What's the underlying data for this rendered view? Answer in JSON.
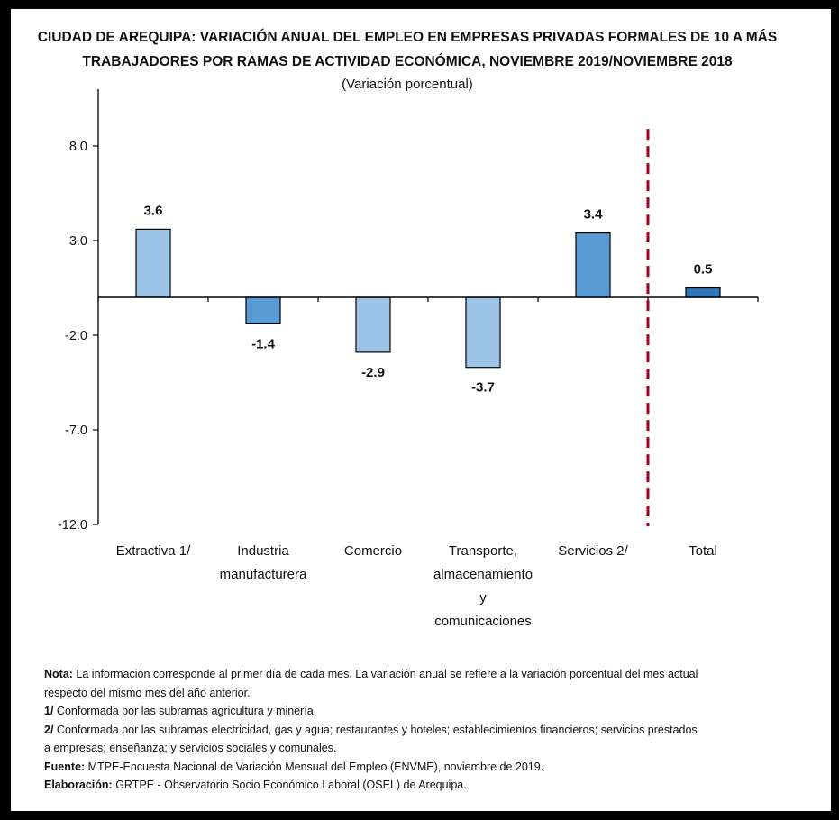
{
  "chart_data": {
    "type": "bar",
    "title": "CIUDAD DE AREQUIPA: VARIACIÓN ANUAL DEL EMPLEO EN EMPRESAS PRIVADAS FORMALES DE 10 A MÁS TRABAJADORES POR RAMAS DE ACTIVIDAD ECONÓMICA, NOVIEMBRE 2019/NOVIEMBRE 2018",
    "title_lines": [
      "CIUDAD DE AREQUIPA: VARIACIÓN ANUAL DEL EMPLEO EN EMPRESAS PRIVADAS FORMALES DE 10 A MÁS",
      "TRABAJADORES POR RAMAS DE ACTIVIDAD ECONÓMICA, NOVIEMBRE 2019/NOVIEMBRE 2018"
    ],
    "subtitle": "(Variación porcentual)",
    "xlabel": "",
    "ylabel": "",
    "ylim": [
      -12,
      8
    ],
    "yticks": [
      8,
      3,
      -2,
      -7,
      -12
    ],
    "ytick_labels": [
      "8.0",
      "3.0",
      "-2.0",
      "-7.0",
      "-12.0"
    ],
    "categories": [
      [
        "Extractiva 1/"
      ],
      [
        "Industria",
        "manufacturera"
      ],
      [
        "Comercio"
      ],
      [
        "Transporte,",
        "almacenamiento",
        "y",
        "comunicaciones"
      ],
      [
        "Servicios 2/"
      ],
      [
        "Total"
      ]
    ],
    "values": [
      3.6,
      -1.4,
      -2.9,
      -3.7,
      3.4,
      0.5
    ],
    "value_labels": [
      "3.6",
      "-1.4",
      "-2.9",
      "-3.7",
      "3.4",
      "0.5"
    ],
    "bar_colors": [
      "#9DC3E6",
      "#5B9BD5",
      "#9DC3E6",
      "#9DC3E6",
      "#5B9BD5",
      "#2E75B6"
    ],
    "separator": {
      "between": [
        "Servicios 2/",
        "Total"
      ],
      "style": "dashed",
      "color": "#A50021"
    },
    "grid": false,
    "legend": "none"
  },
  "notes": [
    {
      "label": "Nota:",
      "text": " La información corresponde al primer día de cada mes. La variación anual se refiere a la variación porcentual del mes actual"
    },
    {
      "label": "",
      "text": "respecto del mismo mes del año anterior."
    },
    {
      "label": "1/",
      "text": " Conformada por las subramas agricultura y minería."
    },
    {
      "label": "2/",
      "text": " Conformada por las subramas electricidad, gas y agua; restaurantes y hoteles; establecimientos financieros; servicios prestados"
    },
    {
      "label": "",
      "text": "a empresas; enseñanza; y servicios sociales y comunales."
    },
    {
      "label": "Fuente:",
      "text": " MTPE-Encuesta Nacional de Variación Mensual del Empleo (ENVME), noviembre de 2019."
    },
    {
      "label": "Elaboración:",
      "text": " GRTPE - Observatorio Socio Económico Laboral (OSEL) de Arequipa."
    }
  ]
}
